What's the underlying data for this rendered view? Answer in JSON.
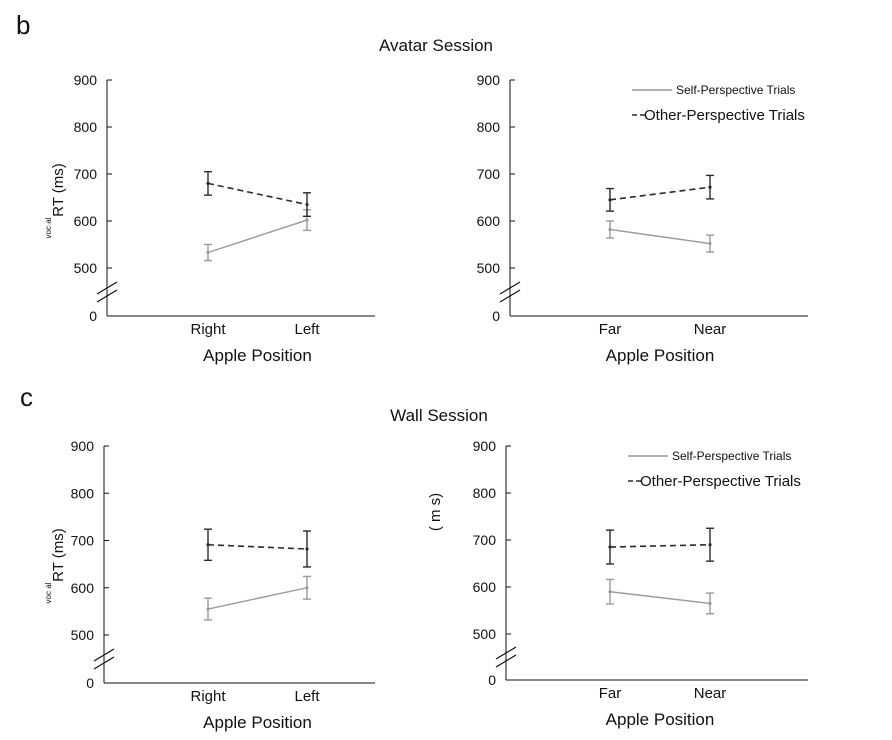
{
  "panel_letters": [
    "b",
    "c"
  ],
  "sessions": [
    {
      "title": "Avatar Session"
    },
    {
      "title": "Wall Session"
    }
  ],
  "legend": {
    "self": "Self-Perspective Trials",
    "other": "Other-Perspective Trials"
  },
  "colors": {
    "self": "#9a9a9a",
    "other": "#2b2b2b",
    "axis": "#111111"
  },
  "chart_data": [
    {
      "type": "line",
      "session": "Avatar Session",
      "title": "",
      "xlabel": "Apple Position",
      "ylabel": "RT (ms)",
      "ylabel_sub": "voc al",
      "categories": [
        "Right",
        "Left"
      ],
      "ylim": [
        0,
        900
      ],
      "yticks": [
        0,
        500,
        600,
        700,
        800,
        900
      ],
      "axis_break": true,
      "legend": false,
      "series": [
        {
          "key": "self",
          "style": "solid",
          "values": [
            533,
            602
          ],
          "errors": [
            17,
            22
          ]
        },
        {
          "key": "other",
          "style": "dashed",
          "values": [
            680,
            635
          ],
          "errors": [
            25,
            25
          ]
        }
      ]
    },
    {
      "type": "line",
      "session": "Avatar Session",
      "title": "",
      "xlabel": "Apple Position",
      "ylabel": "",
      "categories": [
        "Far",
        "Near"
      ],
      "ylim": [
        0,
        900
      ],
      "yticks": [
        0,
        500,
        600,
        700,
        800,
        900
      ],
      "axis_break": true,
      "legend": true,
      "series": [
        {
          "key": "self",
          "name": "Self-Perspective Trials",
          "style": "solid",
          "values": [
            582,
            552
          ],
          "errors": [
            18,
            18
          ]
        },
        {
          "key": "other",
          "name": "Other-Perspective Trials",
          "style": "dashed",
          "values": [
            645,
            672
          ],
          "errors": [
            24,
            25
          ]
        }
      ]
    },
    {
      "type": "line",
      "session": "Wall Session",
      "title": "",
      "xlabel": "Apple Position",
      "ylabel": "RT (ms)",
      "ylabel_sub": "voc al",
      "categories": [
        "Right",
        "Left"
      ],
      "ylim": [
        0,
        900
      ],
      "yticks": [
        0,
        500,
        600,
        700,
        800,
        900
      ],
      "axis_break": true,
      "legend": false,
      "series": [
        {
          "key": "self",
          "style": "solid",
          "values": [
            555,
            600
          ],
          "errors": [
            23,
            24
          ]
        },
        {
          "key": "other",
          "style": "dashed",
          "values": [
            691,
            682
          ],
          "errors": [
            33,
            38
          ]
        }
      ]
    },
    {
      "type": "line",
      "session": "Wall Session",
      "title": "",
      "xlabel": "Apple Position",
      "ylabel": "( m s)",
      "categories": [
        "Far",
        "Near"
      ],
      "ylim": [
        0,
        900
      ],
      "yticks": [
        0,
        500,
        600,
        700,
        800,
        900
      ],
      "axis_break": true,
      "legend": true,
      "series": [
        {
          "key": "self",
          "name": "Self-Perspective Trials",
          "style": "solid",
          "values": [
            590,
            565
          ],
          "errors": [
            26,
            22
          ]
        },
        {
          "key": "other",
          "name": "Other-Perspective Trials",
          "style": "dashed",
          "values": [
            685,
            690
          ],
          "errors": [
            36,
            35
          ]
        }
      ]
    }
  ]
}
